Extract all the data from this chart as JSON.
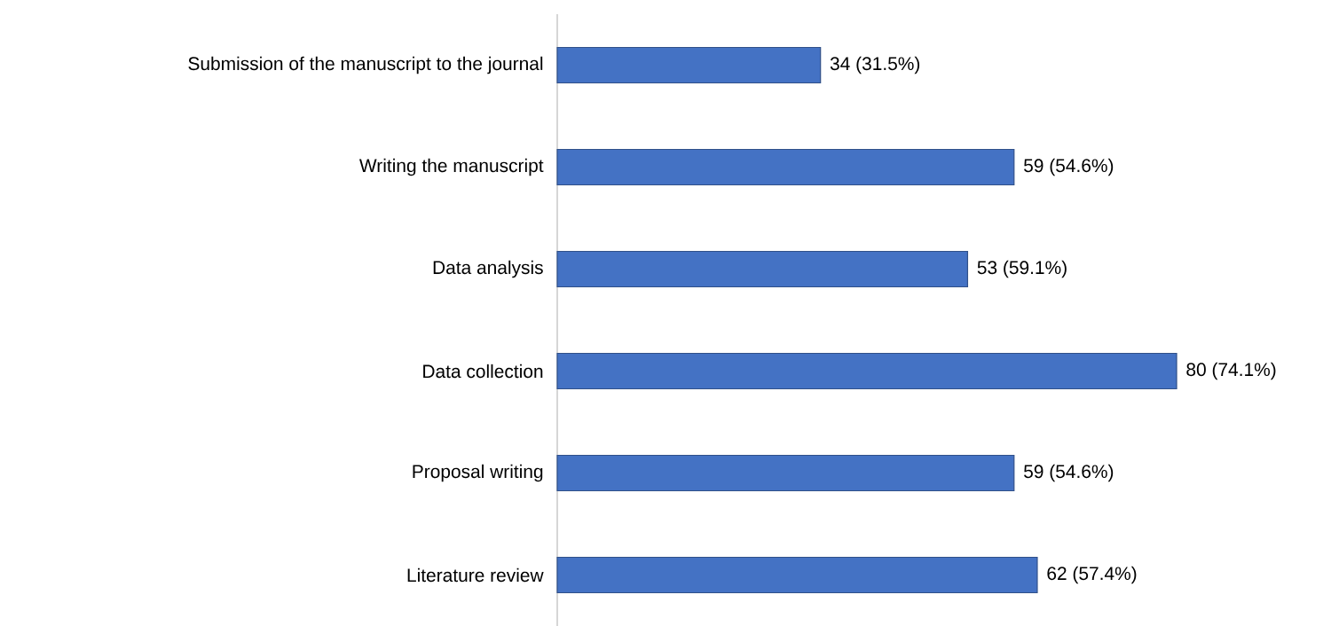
{
  "chart_data": {
    "type": "bar",
    "orientation": "horizontal",
    "categories": [
      "Submission of the manuscript to the journal",
      "Writing the manuscript",
      "Data analysis",
      "Data collection",
      "Proposal writing",
      "Literature review"
    ],
    "values": [
      34,
      59,
      53,
      80,
      59,
      62
    ],
    "value_labels": [
      "34 (31.5%)",
      "59 (54.6%)",
      "53 (59.1%)",
      "80 (74.1%)",
      "59 (54.6%)",
      "62 (57.4%)"
    ],
    "color": "#4472c4",
    "xlim": [
      0,
      80
    ],
    "grid": false
  }
}
